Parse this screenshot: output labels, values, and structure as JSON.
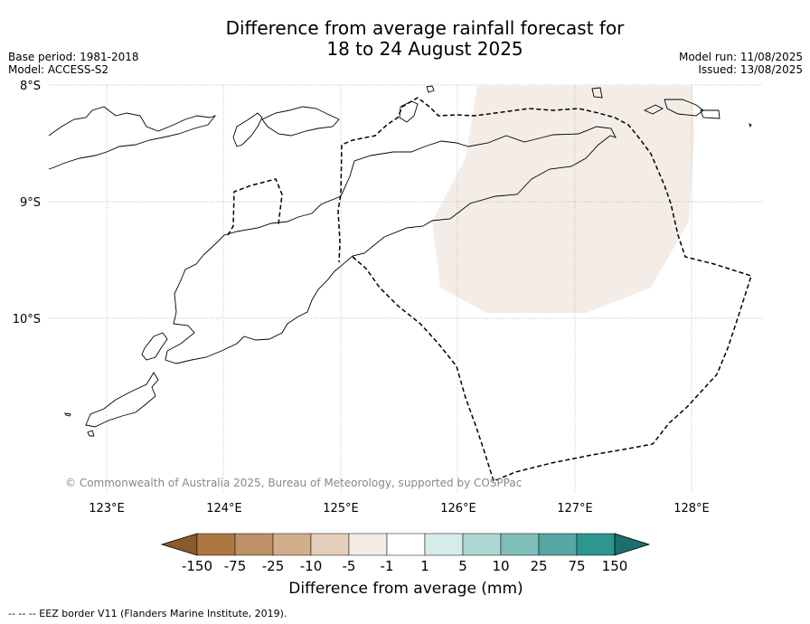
{
  "title_line1": "Difference from average rainfall forecast for",
  "title_line2": "18 to 24 August 2025",
  "meta_left": {
    "base_period": "Base period: 1981-2018",
    "model": "Model: ACCESS-S2"
  },
  "meta_right": {
    "model_run": "Model run: 11/08/2025",
    "issued": "Issued: 13/08/2025"
  },
  "lat_labels": [
    "8°S",
    "9°S",
    "10°S"
  ],
  "lon_labels": [
    "123°E",
    "124°E",
    "125°E",
    "126°E",
    "127°E",
    "128°E"
  ],
  "copyright": "© Commonwealth of Australia 2025, Bureau of Meteorology, supported by COSPPac",
  "legend": {
    "label": "Difference from average (mm)",
    "ticks": [
      "-150",
      "-75",
      "-25",
      "-10",
      "-5",
      "-1",
      "1",
      "5",
      "10",
      "25",
      "75",
      "150"
    ],
    "colors": [
      "#8a5a2b",
      "#ad7742",
      "#bd9067",
      "#d1ad8a",
      "#e3cfbb",
      "#f4ede7",
      "#ffffff",
      "#d7ece9",
      "#aed6d3",
      "#7fbdb9",
      "#56a6a3",
      "#2e958f",
      "#1c6f6b"
    ]
  },
  "footnote": "-- -- -- EEZ border V11 (Flanders Marine Institute, 2019).",
  "forecast_area": {
    "category": "-1 to -5 mm",
    "color": "#f4ede7"
  }
}
